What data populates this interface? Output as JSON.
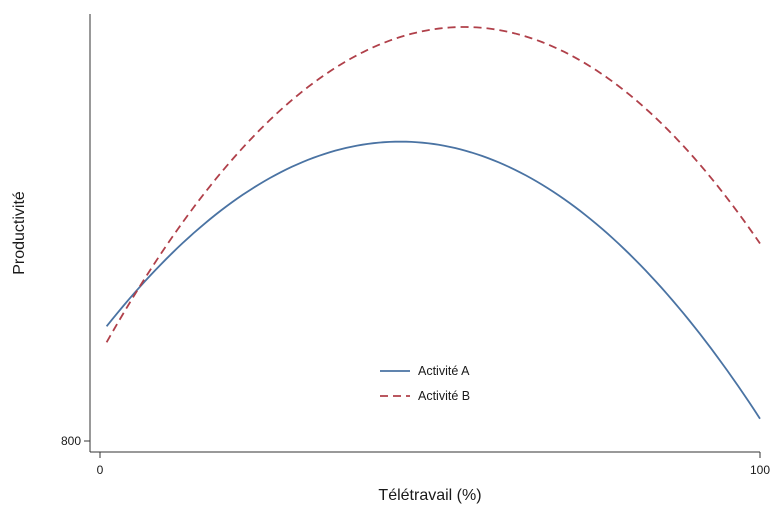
{
  "chart_data": {
    "type": "line",
    "title": "",
    "xlabel": "Télétravail (%)",
    "ylabel": "Productivité",
    "xlim": [
      0,
      100
    ],
    "ylim": [
      800,
      1450
    ],
    "x_ticks": [
      {
        "value": 0,
        "label": "0"
      },
      {
        "value": 100,
        "label": "100"
      }
    ],
    "y_ticks": [
      {
        "value": 800,
        "label": "800"
      }
    ],
    "grid": false,
    "legend_position": "bottom-center",
    "series": [
      {
        "name": "Activité A",
        "color": "#4a73a3",
        "dash": "solid",
        "points": [
          {
            "x": 1,
            "y": 980
          },
          {
            "x": 45,
            "y": 1270
          },
          {
            "x": 100,
            "y": 835
          }
        ]
      },
      {
        "name": "Activité B",
        "color": "#b0404a",
        "dash": "dashed",
        "points": [
          {
            "x": 1,
            "y": 955
          },
          {
            "x": 55,
            "y": 1450
          },
          {
            "x": 100,
            "y": 1110
          }
        ]
      }
    ]
  }
}
